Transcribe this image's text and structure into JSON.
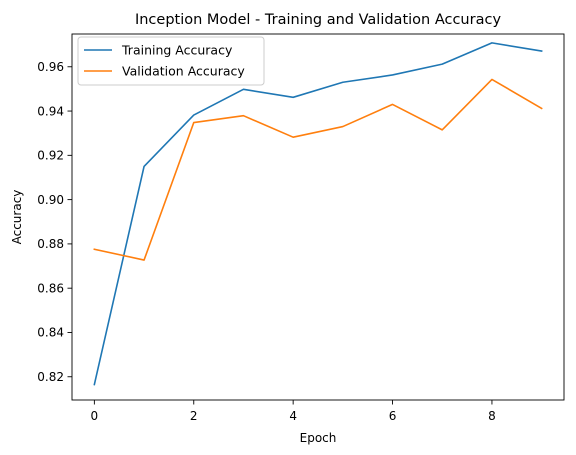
{
  "chart_data": {
    "type": "line",
    "title": "Inception Model - Training and Validation Accuracy",
    "xlabel": "Epoch",
    "ylabel": "Accuracy",
    "x": [
      0,
      1,
      2,
      3,
      4,
      5,
      6,
      7,
      8,
      9
    ],
    "xlim": [
      -0.45,
      9.45
    ],
    "ylim": [
      0.8095,
      0.9748
    ],
    "xticks": [
      0,
      2,
      4,
      6,
      8
    ],
    "yticks": [
      0.82,
      0.84,
      0.86,
      0.88,
      0.9,
      0.92,
      0.94,
      0.96
    ],
    "xtick_labels": [
      "0",
      "2",
      "4",
      "6",
      "8"
    ],
    "ytick_labels": [
      "0.82",
      "0.84",
      "0.86",
      "0.88",
      "0.90",
      "0.92",
      "0.94",
      "0.96"
    ],
    "grid": false,
    "legend_position": "upper-left",
    "series": [
      {
        "name": "Training Accuracy",
        "color": "#1f77b4",
        "values": [
          0.8165,
          0.915,
          0.9382,
          0.9498,
          0.9462,
          0.953,
          0.9563,
          0.9612,
          0.9708,
          0.9671
        ]
      },
      {
        "name": "Validation Accuracy",
        "color": "#ff7f0e",
        "values": [
          0.8776,
          0.8727,
          0.9348,
          0.9379,
          0.9282,
          0.933,
          0.943,
          0.9315,
          0.9543,
          0.9412
        ]
      }
    ]
  }
}
